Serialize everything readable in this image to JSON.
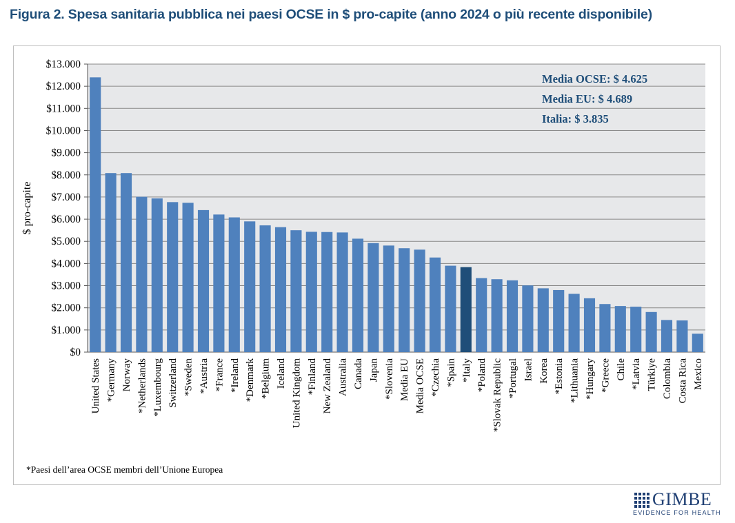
{
  "title": "Figura 2. Spesa sanitaria pubblica nei paesi OCSE in $ pro-capite (anno 2024 o più recente disponibile)",
  "footnote": "*Paesi dell’area OCSE membri dell’Unione Europea",
  "logo": {
    "name": "GIMBE",
    "tagline": "EVIDENCE FOR HEALTH"
  },
  "colors": {
    "bar": "#4f81bd",
    "highlight": "#1f4e79",
    "plot_bg": "#e7e8ea",
    "grid": "#888888",
    "annotation": "#1f4e79"
  },
  "annotations": [
    "Media OCSE: $ 4.625",
    "Media EU: $ 4.689",
    "Italia: $ 3.835"
  ],
  "chart_data": {
    "type": "bar",
    "ylabel": "$ pro-capite",
    "xlabel": "",
    "ylim": [
      0,
      13000
    ],
    "ytick_labels": [
      "$0",
      "$1.000",
      "$2.000",
      "$3.000",
      "$4.000",
      "$5.000",
      "$6.000",
      "$7.000",
      "$8.000",
      "$9.000",
      "$10.000",
      "$11.000",
      "$12.000",
      "$13.000"
    ],
    "grid": true,
    "categories": [
      "United States",
      "*Germany",
      "Norway",
      "*Netherlands",
      "*Luxembourg",
      "Switzerland",
      "*Sweden",
      "*Austria",
      "*France",
      "*Ireland",
      "*Denmark",
      "*Belgium",
      "Iceland",
      "United Kingdom",
      "*Finland",
      "New Zealand",
      "Australia",
      "Canada",
      "Japan",
      "*Slovenia",
      "Media EU",
      "Media OCSE",
      "*Czechia",
      "*Spain",
      "*Italy",
      "*Poland",
      "*Slovak Republic",
      "*Portugal",
      "Israel",
      "Korea",
      "*Estonia",
      "*Lithuania",
      "*Hungary",
      "*Greece",
      "Chile",
      "*Latvia",
      "Türkiye",
      "Colombia",
      "Costa Rica",
      "Mexico"
    ],
    "values": [
      12400,
      8080,
      8080,
      7010,
      6940,
      6770,
      6740,
      6410,
      6210,
      6080,
      5900,
      5720,
      5640,
      5500,
      5430,
      5420,
      5400,
      5120,
      4920,
      4810,
      4689,
      4625,
      4270,
      3900,
      3835,
      3340,
      3290,
      3240,
      3010,
      2880,
      2800,
      2630,
      2430,
      2170,
      2080,
      2050,
      1810,
      1450,
      1430,
      830
    ],
    "highlight_category": "*Italy"
  }
}
